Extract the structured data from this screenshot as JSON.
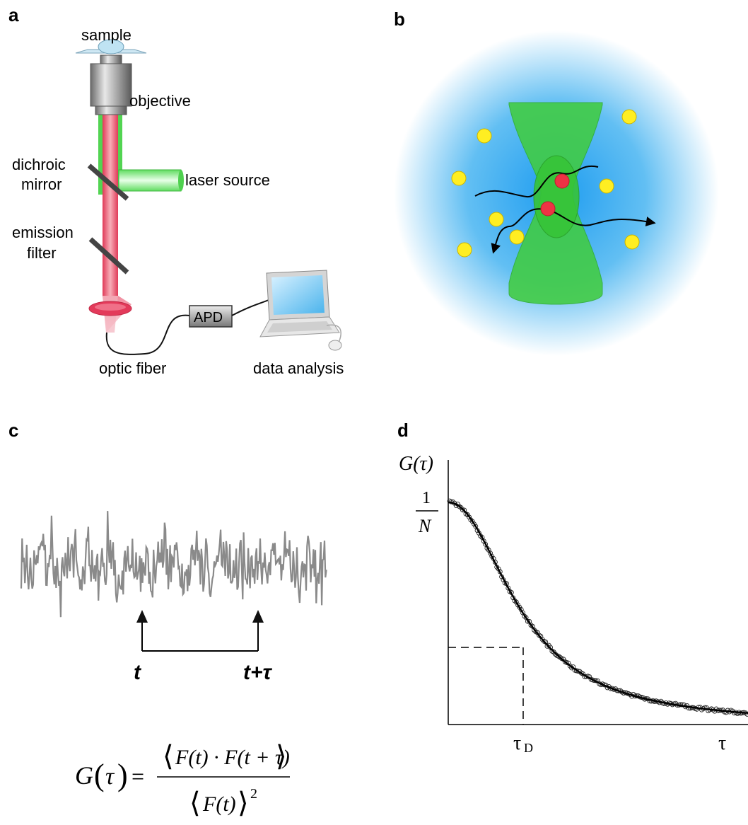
{
  "panels": {
    "a": {
      "letter": "a",
      "labels": {
        "sample": "sample",
        "objective": "objective",
        "dichroic_mirror_line1": "dichroic",
        "dichroic_mirror_line2": "mirror",
        "laser_source": "laser source",
        "emission_filter_line1": "emission",
        "emission_filter_line2": "filter",
        "apd": "APD",
        "optic_fiber": "optic fiber",
        "data_analysis": "data analysis"
      }
    },
    "b": {
      "letter": "b"
    },
    "c": {
      "letter": "c",
      "t_label": "t",
      "t_tau_label": "t+τ",
      "formula": {
        "lhs": "G",
        "lhs_arg": "τ",
        "numerator": "F(t) · F(t + τ)",
        "denominator": "F(t)",
        "power": "2"
      }
    },
    "d": {
      "letter": "d",
      "ylabel": "G(τ)",
      "y_tick_num": "1",
      "y_tick_den": "N",
      "x_tick_tauD": "τ",
      "x_tick_tauD_sub": "D",
      "x_end_label": "τ"
    }
  },
  "colors": {
    "green": "#3ad13a",
    "red_beam": "#e8425f",
    "blue_glow": "#33a8f0",
    "yellow": "#ffee22",
    "red_dot": "#ee3344",
    "trace_gray": "#8a8a8a"
  }
}
